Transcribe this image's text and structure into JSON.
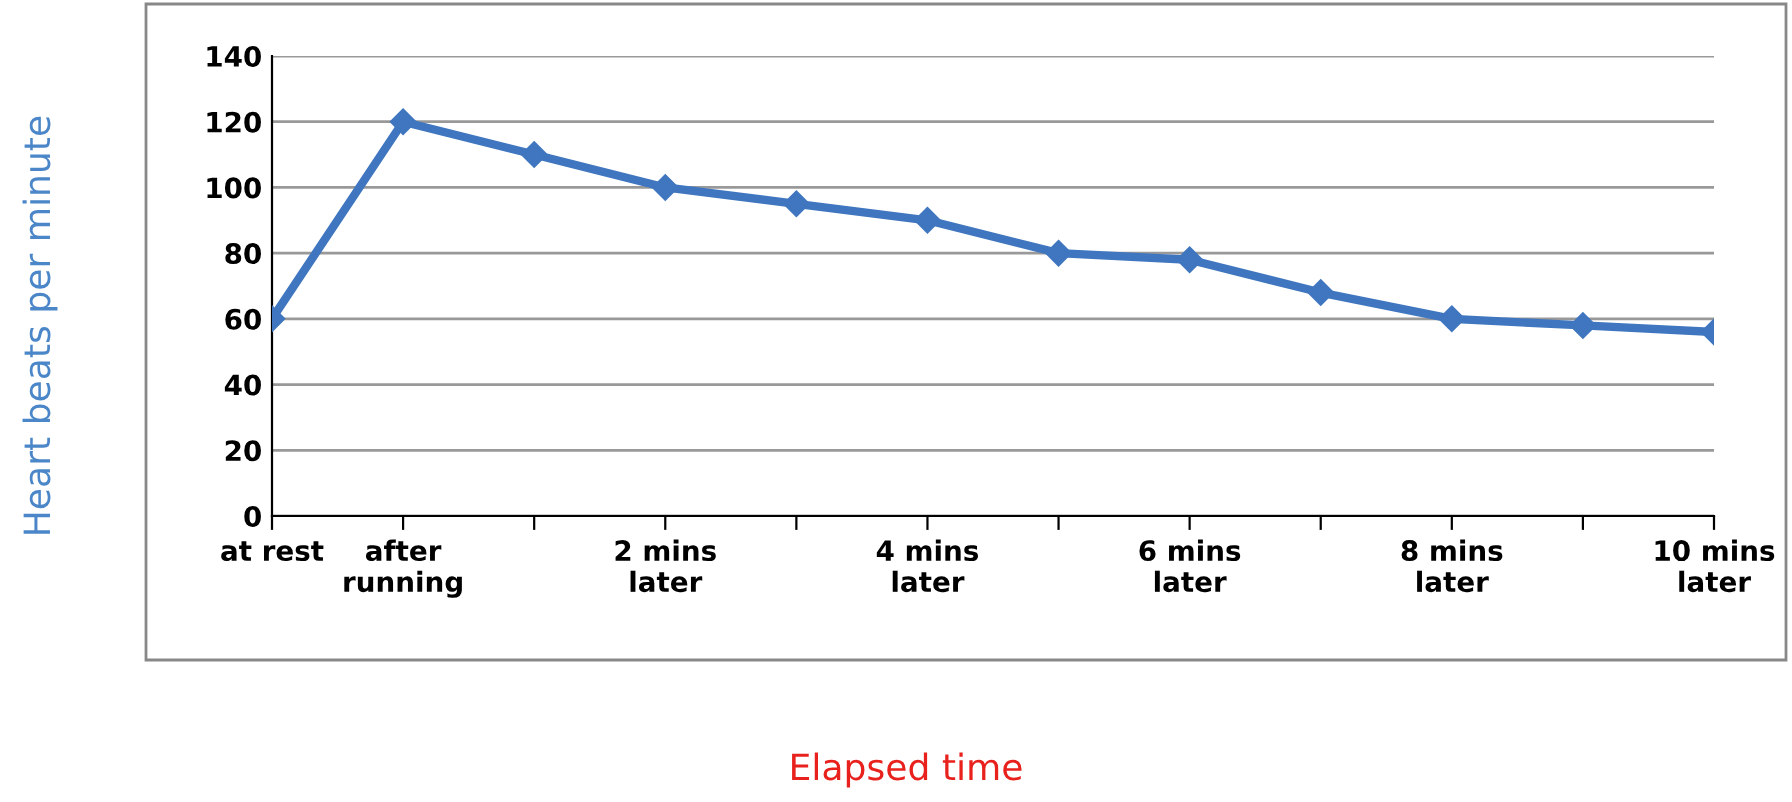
{
  "chart_data": {
    "type": "line",
    "xlabel": "Elapsed time",
    "ylabel": "Heart beats per minute",
    "categories": [
      "at rest",
      "after\nrunning",
      null,
      "2 mins\nlater",
      null,
      "4 mins\nlater",
      null,
      "6 mins\nlater",
      null,
      "8 mins\nlater",
      null,
      "10 mins\nlater"
    ],
    "series": [
      {
        "color": "#3f76bf",
        "values": [
          60,
          120,
          110,
          100,
          95,
          90,
          80,
          78,
          68,
          60,
          58,
          56
        ]
      }
    ],
    "ylim": [
      0,
      140
    ],
    "yticks": [
      0,
      20,
      40,
      60,
      80,
      100,
      120,
      140
    ],
    "grid": "y",
    "marker": "diamond",
    "line_style": "solid",
    "legend": false
  }
}
